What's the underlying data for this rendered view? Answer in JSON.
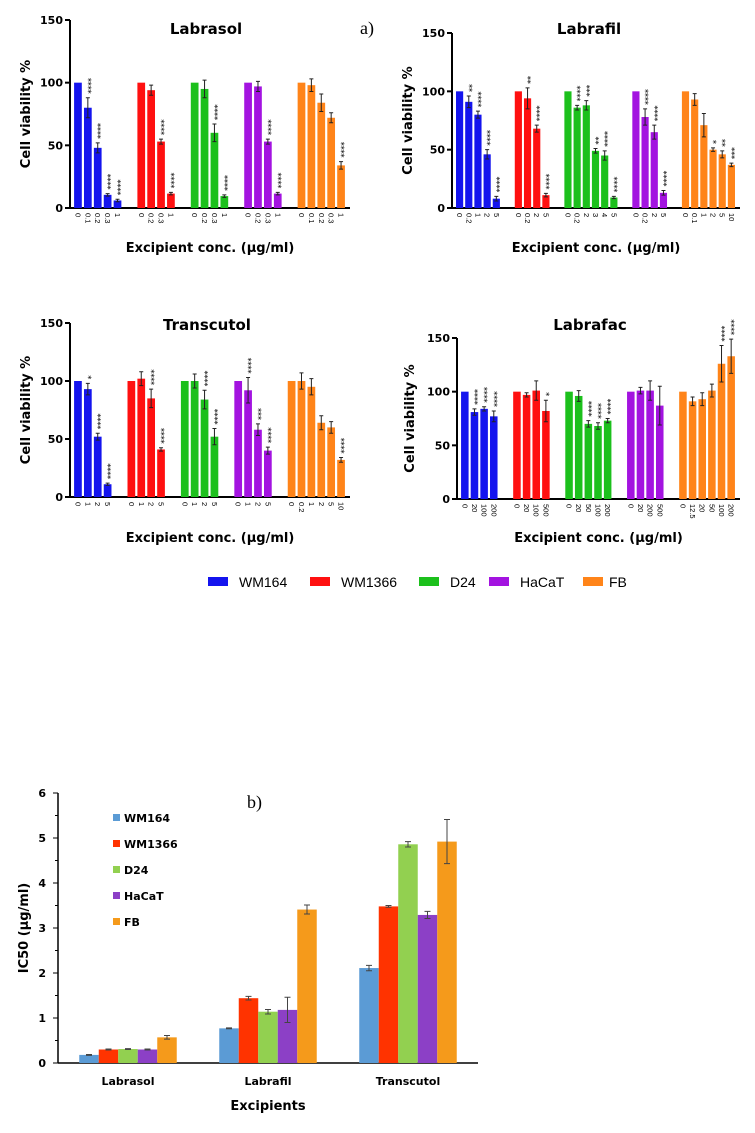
{
  "figure_a_label": "a)",
  "figure_b_label": "b)",
  "legend_a": [
    {
      "name": "WM164",
      "color": "#1414ee"
    },
    {
      "name": "WM1366",
      "color": "#ff1010"
    },
    {
      "name": "D24",
      "color": "#1cc01c"
    },
    {
      "name": "HaCaT",
      "color": "#a313e0"
    },
    {
      "name": "FB",
      "color": "#ff8419"
    }
  ],
  "chart_data": [
    {
      "type": "bar",
      "title": "Labrasol",
      "xlabel": "Excipient conc. (µg/ml)",
      "ylabel": "Cell viability %",
      "ylim": [
        0,
        150
      ],
      "yticks": [
        0,
        50,
        100,
        150
      ],
      "groups": [
        {
          "series": "WM164",
          "x": [
            "0",
            "0.1",
            "0.2",
            "0.3",
            "1"
          ],
          "values": [
            100,
            80,
            48,
            10.5,
            6
          ],
          "errors": [
            0,
            8,
            4,
            1,
            1
          ],
          "stars": [
            "",
            "****",
            "****",
            "****",
            "****"
          ]
        },
        {
          "series": "WM1366",
          "x": [
            "0",
            "0.2",
            "0.3",
            "1"
          ],
          "values": [
            100,
            94,
            53,
            11.5
          ],
          "errors": [
            0,
            4,
            2,
            1
          ],
          "stars": [
            "",
            "",
            "****",
            "****"
          ]
        },
        {
          "series": "D24",
          "x": [
            "0",
            "0.2",
            "0.3",
            "1"
          ],
          "values": [
            100,
            95,
            60,
            9.5
          ],
          "errors": [
            0,
            7,
            7,
            1
          ],
          "stars": [
            "",
            "",
            "****",
            "****"
          ]
        },
        {
          "series": "HaCaT",
          "x": [
            "0",
            "0.2",
            "0.3",
            "1"
          ],
          "values": [
            100,
            97,
            53,
            11.5
          ],
          "errors": [
            0,
            4,
            2,
            1
          ],
          "stars": [
            "",
            "",
            "****",
            "****"
          ]
        },
        {
          "series": "FB",
          "x": [
            "0",
            "0.1",
            "0.2",
            "0.3",
            "1"
          ],
          "values": [
            100,
            98,
            84,
            72,
            34
          ],
          "errors": [
            0,
            5,
            7,
            4,
            3
          ],
          "stars": [
            "",
            "",
            "",
            "",
            "****"
          ]
        }
      ]
    },
    {
      "type": "bar",
      "title": "Labrafil",
      "xlabel": "Excipient conc. (µg/ml)",
      "ylabel": "Cell viability %",
      "ylim": [
        0,
        150
      ],
      "yticks": [
        0,
        50,
        100,
        150
      ],
      "groups": [
        {
          "series": "WM164",
          "x": [
            "0",
            "0.2",
            "1",
            "2",
            "5"
          ],
          "values": [
            100,
            91,
            80,
            46,
            8
          ],
          "errors": [
            0,
            5,
            3,
            4,
            2
          ],
          "stars": [
            "",
            "**",
            "****",
            "****",
            "****"
          ]
        },
        {
          "series": "WM1366",
          "x": [
            "0",
            "0.2",
            "2",
            "5"
          ],
          "values": [
            100,
            94,
            68,
            11
          ],
          "errors": [
            0,
            9,
            3,
            1.5
          ],
          "stars": [
            "",
            "**",
            "****",
            "****"
          ]
        },
        {
          "series": "D24",
          "x": [
            "0",
            "0.2",
            "2",
            "3",
            "4",
            "5"
          ],
          "values": [
            100,
            86,
            88,
            49,
            45,
            9
          ],
          "errors": [
            0,
            2,
            4,
            2,
            4,
            1
          ],
          "stars": [
            "",
            "****",
            "***",
            "**",
            "****",
            "****"
          ]
        },
        {
          "series": "HaCaT",
          "x": [
            "0",
            "0.2",
            "2",
            "5"
          ],
          "values": [
            100,
            78,
            65,
            13
          ],
          "errors": [
            0,
            7,
            6,
            2
          ],
          "stars": [
            "",
            "****",
            "****",
            "****"
          ]
        },
        {
          "series": "FB",
          "x": [
            "0",
            "0.1",
            "1",
            "2",
            "5",
            "10"
          ],
          "values": [
            100,
            93,
            71,
            50,
            46,
            37
          ],
          "errors": [
            0,
            5,
            10,
            1.5,
            3,
            1.5
          ],
          "stars": [
            "",
            "",
            "",
            "*",
            "**",
            "***"
          ]
        }
      ]
    },
    {
      "type": "bar",
      "title": "Transcutol",
      "xlabel": "Excipient conc. (µg/ml)",
      "ylabel": "Cell viability %",
      "ylim": [
        0,
        150
      ],
      "yticks": [
        0,
        50,
        100,
        150
      ],
      "groups": [
        {
          "series": "WM164",
          "x": [
            "0",
            "1",
            "2",
            "5"
          ],
          "values": [
            100,
            93,
            52,
            11
          ],
          "errors": [
            0,
            5,
            3,
            1
          ],
          "stars": [
            "",
            "*",
            "****",
            "****"
          ]
        },
        {
          "series": "WM1366",
          "x": [
            "0",
            "1",
            "2",
            "5"
          ],
          "values": [
            100,
            102,
            85,
            41
          ],
          "errors": [
            0,
            6,
            8,
            1.5
          ],
          "stars": [
            "",
            "",
            "****",
            "****"
          ]
        },
        {
          "series": "D24",
          "x": [
            "0",
            "1",
            "2",
            "5"
          ],
          "values": [
            100,
            100,
            84,
            52
          ],
          "errors": [
            0,
            6,
            8,
            7
          ],
          "stars": [
            "",
            "",
            "****",
            "****"
          ]
        },
        {
          "series": "HaCaT",
          "x": [
            "0",
            "1",
            "2",
            "5"
          ],
          "values": [
            100,
            92,
            58,
            40
          ],
          "errors": [
            0,
            11,
            5,
            3
          ],
          "stars": [
            "",
            "****",
            "***",
            "****"
          ]
        },
        {
          "series": "FB",
          "x": [
            "0",
            "0.2",
            "1",
            "2",
            "5",
            "10"
          ],
          "values": [
            100,
            100,
            95,
            64,
            60,
            32
          ],
          "errors": [
            0,
            7,
            7,
            6,
            5,
            2
          ],
          "stars": [
            "",
            "",
            "",
            "",
            "",
            "****"
          ]
        }
      ]
    },
    {
      "type": "bar",
      "title": "Labrafac",
      "xlabel": "Excipient conc. (µg/ml)",
      "ylabel": "Cell viability %",
      "ylim": [
        0,
        150
      ],
      "yticks": [
        0,
        50,
        100,
        150
      ],
      "groups": [
        {
          "series": "WM164",
          "x": [
            "0",
            "20",
            "100",
            "200"
          ],
          "values": [
            100,
            81,
            84,
            77
          ],
          "errors": [
            0,
            3,
            2,
            5
          ],
          "stars": [
            "",
            "****",
            "****",
            "****"
          ]
        },
        {
          "series": "WM1366",
          "x": [
            "0",
            "20",
            "100",
            "500"
          ],
          "values": [
            100,
            97,
            101,
            82
          ],
          "errors": [
            0,
            2,
            9,
            10
          ],
          "stars": [
            "",
            "",
            "",
            "*"
          ]
        },
        {
          "series": "D24",
          "x": [
            "0",
            "20",
            "50",
            "100",
            "200"
          ],
          "values": [
            100,
            96,
            70,
            68,
            73
          ],
          "errors": [
            0,
            5,
            3,
            3,
            2
          ],
          "stars": [
            "",
            "",
            "****",
            "****",
            "****"
          ]
        },
        {
          "series": "HaCaT",
          "x": [
            "0",
            "20",
            "200",
            "500"
          ],
          "values": [
            100,
            101,
            101,
            87
          ],
          "errors": [
            0,
            3,
            9,
            18
          ],
          "stars": [
            "",
            "",
            "",
            ""
          ]
        },
        {
          "series": "FB",
          "x": [
            "0",
            "12.5",
            "20",
            "50",
            "100",
            "200"
          ],
          "values": [
            100,
            91,
            93,
            101,
            126,
            133
          ],
          "errors": [
            0,
            4,
            6,
            6,
            17,
            16
          ],
          "stars": [
            "",
            "",
            "",
            "",
            "****",
            "****"
          ]
        }
      ]
    },
    {
      "type": "bar",
      "title": "",
      "xlabel": "Excipients",
      "ylabel": "IC50 (µg/ml)",
      "ylim": [
        0,
        6
      ],
      "yticks": [
        0,
        1,
        2,
        3,
        4,
        5,
        6
      ],
      "categories": [
        "Labrasol",
        "Labrafil",
        "Transcutol"
      ],
      "legend_placement": "top-left",
      "series": [
        {
          "name": "WM164",
          "color": "#5b9bd5",
          "values": [
            0.18,
            0.77,
            2.11
          ],
          "errors": [
            0.01,
            0.01,
            0.06
          ]
        },
        {
          "name": "WM1366",
          "color": "#ff3300",
          "values": [
            0.3,
            1.44,
            3.48
          ],
          "errors": [
            0.01,
            0.04,
            0.02
          ]
        },
        {
          "name": "D24",
          "color": "#92d050",
          "values": [
            0.31,
            1.14,
            4.86
          ],
          "errors": [
            0.01,
            0.05,
            0.06
          ]
        },
        {
          "name": "HaCaT",
          "color": "#8c40c6",
          "values": [
            0.3,
            1.18,
            3.29
          ],
          "errors": [
            0.01,
            0.28,
            0.08
          ]
        },
        {
          "name": "FB",
          "color": "#f59a1b",
          "values": [
            0.57,
            3.41,
            4.92
          ],
          "errors": [
            0.04,
            0.1,
            0.49
          ]
        }
      ]
    }
  ]
}
